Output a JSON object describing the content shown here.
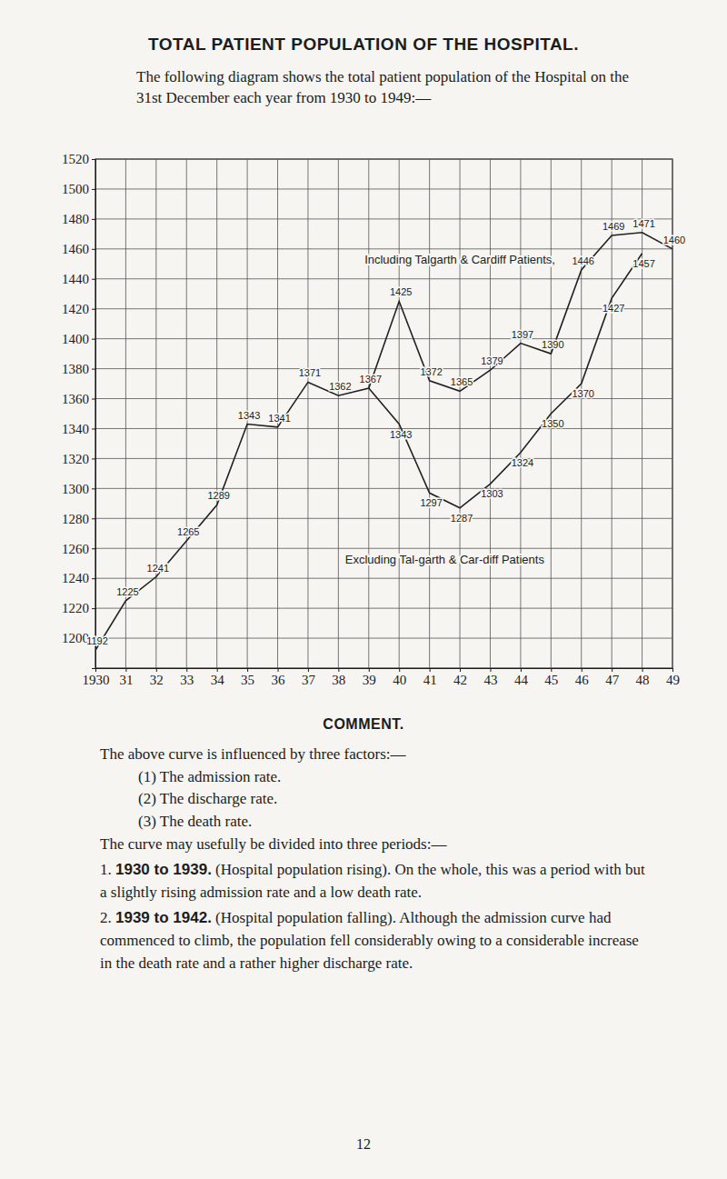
{
  "title": "TOTAL PATIENT POPULATION OF THE HOSPITAL.",
  "intro": "The following diagram shows the total patient population of the Hospital on the 31st December each year from 1930 to 1949:—",
  "chart_data": {
    "type": "line",
    "x": [
      1930,
      1931,
      1932,
      1933,
      1934,
      1935,
      1936,
      1937,
      1938,
      1939,
      1940,
      1941,
      1942,
      1943,
      1944,
      1945,
      1946,
      1947,
      1948,
      1949
    ],
    "xlim": [
      1930,
      1949
    ],
    "xticks": [
      1930,
      {
        "value": 1931,
        "label": "31"
      },
      {
        "value": 1932,
        "label": "32"
      },
      {
        "value": 1933,
        "label": "33"
      },
      {
        "value": 1934,
        "label": "34"
      },
      {
        "value": 1935,
        "label": "35"
      },
      {
        "value": 1936,
        "label": "36"
      },
      {
        "value": 1937,
        "label": "37"
      },
      {
        "value": 1938,
        "label": "38"
      },
      {
        "value": 1939,
        "label": "39"
      },
      {
        "value": 1940,
        "label": "40"
      },
      {
        "value": 1941,
        "label": "41"
      },
      {
        "value": 1942,
        "label": "42"
      },
      {
        "value": 1943,
        "label": "43"
      },
      {
        "value": 1944,
        "label": "44"
      },
      {
        "value": 1945,
        "label": "45"
      },
      {
        "value": 1946,
        "label": "46"
      },
      {
        "value": 1947,
        "label": "47"
      },
      {
        "value": 1948,
        "label": "48"
      },
      {
        "value": 1949,
        "label": "49"
      }
    ],
    "ylim": [
      1180,
      1520
    ],
    "yticks": [
      1200,
      1220,
      1240,
      1260,
      1280,
      1300,
      1320,
      1340,
      1360,
      1380,
      1400,
      1420,
      1440,
      1460,
      1480,
      1500,
      1520
    ],
    "grid": true,
    "data_labels": true,
    "series": [
      {
        "name": "Including Talgarth & Cardiff Patients,",
        "color": "#222222",
        "values": [
          1192,
          1225,
          1241,
          1265,
          1289,
          1343,
          1341,
          1371,
          1362,
          1367,
          1425,
          1372,
          1365,
          1379,
          1397,
          1390,
          1446,
          1469,
          1471,
          1460
        ]
      },
      {
        "name": "Excluding Tal-garth & Car-diff Patients",
        "color": "#222222",
        "values": [
          null,
          null,
          null,
          null,
          null,
          null,
          null,
          null,
          null,
          1367,
          1343,
          1297,
          1287,
          1303,
          1324,
          1350,
          1370,
          1427,
          1457,
          null
        ]
      }
    ]
  },
  "comment": {
    "heading": "COMMENT.",
    "lead": "The above curve is influenced by three factors:—",
    "factors": [
      "(1) The admission rate.",
      "(2) The discharge rate.",
      "(3) The death rate."
    ],
    "periods_lead": "The curve may usefully be divided into three periods:—",
    "periods": [
      {
        "number": "1.",
        "span": "1930 to 1939.",
        "text": "(Hospital population rising). On the whole, this was a period with but a slightly rising admission rate and a low death rate."
      },
      {
        "number": "2.",
        "span": "1939 to 1942.",
        "text": "(Hospital population falling). Although the admission curve had commenced to climb, the population fell considerably owing to a considerable increase in the death rate and a rather higher discharge rate."
      }
    ]
  },
  "page_number": "12"
}
